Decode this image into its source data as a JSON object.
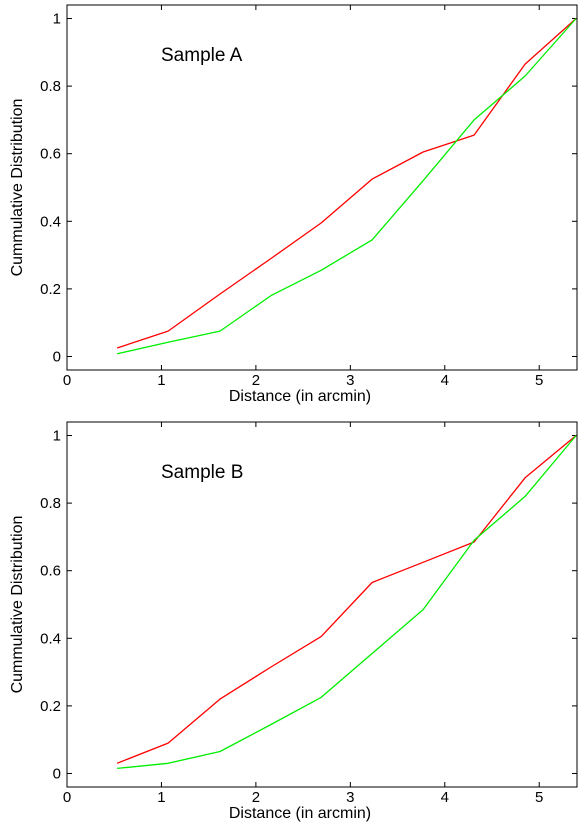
{
  "chart_data": [
    {
      "type": "line",
      "annotation": "Sample A",
      "xlabel": "Distance (in arcmin)",
      "ylabel": "Cummulative Distribution",
      "xlim": [
        0,
        5.4
      ],
      "ylim": [
        -0.04,
        1.04
      ],
      "xticks": [
        0,
        1,
        2,
        3,
        4,
        5
      ],
      "yticks": [
        0,
        0.2,
        0.4,
        0.6,
        0.8,
        1
      ],
      "xtick_labels": [
        "0",
        "1",
        "2",
        "3",
        "4",
        "5"
      ],
      "ytick_labels": [
        "0",
        "0.2",
        "0.4",
        "0.6",
        "0.8",
        "1"
      ],
      "grid": false,
      "series": [
        {
          "color": "#ff0000",
          "x": [
            0.53,
            1.07,
            1.62,
            2.16,
            2.69,
            3.23,
            3.77,
            4.31,
            4.85,
            5.39
          ],
          "y": [
            0.025,
            0.075,
            0.185,
            0.29,
            0.395,
            0.525,
            0.605,
            0.655,
            0.865,
            1.0
          ]
        },
        {
          "color": "#00ee00",
          "x": [
            0.53,
            1.07,
            1.62,
            2.16,
            2.69,
            3.23,
            3.77,
            4.31,
            4.85,
            5.39
          ],
          "y": [
            0.008,
            0.042,
            0.075,
            0.18,
            0.255,
            0.345,
            0.52,
            0.7,
            0.83,
            1.0
          ]
        }
      ]
    },
    {
      "type": "line",
      "annotation": "Sample B",
      "xlabel": "Distance (in arcmin)",
      "ylabel": "Cummulative Distribution",
      "xlim": [
        0,
        5.4
      ],
      "ylim": [
        -0.04,
        1.04
      ],
      "xticks": [
        0,
        1,
        2,
        3,
        4,
        5
      ],
      "yticks": [
        0,
        0.2,
        0.4,
        0.6,
        0.8,
        1
      ],
      "xtick_labels": [
        "0",
        "1",
        "2",
        "3",
        "4",
        "5"
      ],
      "ytick_labels": [
        "0",
        "0.2",
        "0.4",
        "0.6",
        "0.8",
        "1"
      ],
      "grid": false,
      "series": [
        {
          "color": "#ff0000",
          "x": [
            0.53,
            1.07,
            1.62,
            2.16,
            2.69,
            3.23,
            3.77,
            4.31,
            4.85,
            5.39
          ],
          "y": [
            0.03,
            0.09,
            0.22,
            0.315,
            0.405,
            0.565,
            0.625,
            0.685,
            0.875,
            1.0
          ]
        },
        {
          "color": "#00ee00",
          "x": [
            0.53,
            1.07,
            1.62,
            2.16,
            2.69,
            3.23,
            3.77,
            4.31,
            4.85,
            5.39
          ],
          "y": [
            0.015,
            0.03,
            0.065,
            0.145,
            0.225,
            0.355,
            0.485,
            0.69,
            0.82,
            1.0
          ]
        }
      ]
    }
  ]
}
